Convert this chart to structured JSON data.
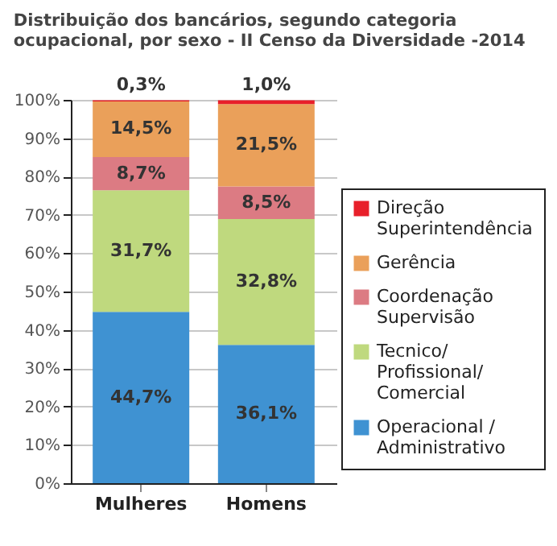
{
  "chart_data": {
    "type": "bar",
    "title": "Distribuição dos bancários, segundo categoria ocupacional, por sexo - II Censo da Diversidade -2014",
    "categories": [
      "Mulheres",
      "Homens"
    ],
    "stacked": true,
    "series": [
      {
        "name": "Operacional /\nAdministrativo",
        "color": "#3f92d2",
        "values": [
          44.7,
          36.1
        ],
        "value_labels": [
          "44,7%",
          "36,1%"
        ]
      },
      {
        "name": "Tecnico/\nProfissional/\nComercial",
        "color": "#bfd97e",
        "values": [
          31.7,
          32.8
        ],
        "value_labels": [
          "31,7%",
          "32,8%"
        ]
      },
      {
        "name": "Coordenação\nSupervisão",
        "color": "#dc7b83",
        "values": [
          8.7,
          8.5
        ],
        "value_labels": [
          "8,7%",
          "8,5%"
        ]
      },
      {
        "name": "Gerência",
        "color": "#eaa05a",
        "values": [
          14.5,
          21.5
        ],
        "value_labels": [
          "14,5%",
          "21,5%"
        ]
      },
      {
        "name": "Direção\nSuperintendência",
        "color": "#e8202a",
        "values": [
          0.3,
          1.0
        ],
        "value_labels": [
          "0,3%",
          "1,0%"
        ]
      }
    ],
    "ylim": [
      0,
      100
    ],
    "yticks": [
      {
        "value": 0,
        "label": "0%"
      },
      {
        "value": 10,
        "label": "10%"
      },
      {
        "value": 20,
        "label": "20%"
      },
      {
        "value": 30,
        "label": "30%"
      },
      {
        "value": 40,
        "label": "40%"
      },
      {
        "value": 50,
        "label": "50%"
      },
      {
        "value": 60,
        "label": "60%"
      },
      {
        "value": 70,
        "label": "70%"
      },
      {
        "value": 80,
        "label": "80%"
      },
      {
        "value": 90,
        "label": "90%"
      },
      {
        "value": 100,
        "label": "100%"
      }
    ],
    "grid": "y",
    "legend": "right"
  }
}
